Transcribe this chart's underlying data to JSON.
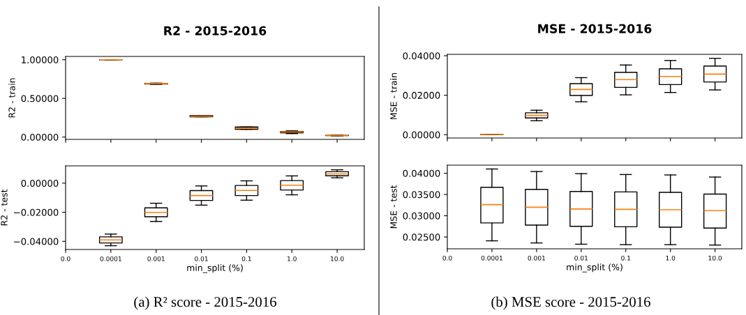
{
  "chart_data": [
    {
      "type": "box",
      "title": "R2 - 2015-2016",
      "ylabel": "R2 - train",
      "tick_labels": "y",
      "categories": [
        "0.0",
        "0.0001",
        "0.001",
        "0.01",
        "0.1",
        "1.0",
        "10.0"
      ],
      "ylim": [
        -0.03,
        1.042
      ],
      "yticks": [
        {
          "value": 0,
          "label": "0.00000"
        },
        {
          "value": 0.5,
          "label": "0.50000"
        },
        {
          "value": 1,
          "label": "1.00000"
        }
      ],
      "boxes": [
        null,
        {
          "low": 0.998,
          "q1": 0.999,
          "median": 0.999,
          "q3": 1.0,
          "high": 1.0
        },
        {
          "low": 0.68,
          "q1": 0.685,
          "median": 0.69,
          "q3": 0.693,
          "high": 0.697
        },
        {
          "low": 0.262,
          "q1": 0.262,
          "median": 0.27,
          "q3": 0.278,
          "high": 0.278
        },
        {
          "low": 0.1,
          "q1": 0.1,
          "median": 0.115,
          "q3": 0.13,
          "high": 0.13
        },
        {
          "low": 0.045,
          "q1": 0.055,
          "median": 0.065,
          "q3": 0.072,
          "high": 0.08
        },
        {
          "low": 0.015,
          "q1": 0.018,
          "median": 0.02,
          "q3": 0.022,
          "high": 0.025
        }
      ]
    },
    {
      "type": "box",
      "ylabel": "R2 - test",
      "xlabel": "min_split (%)",
      "annotations": [
        "(a) R² score - 2015-2016"
      ],
      "categories": [
        "0.0",
        "0.0001",
        "0.001",
        "0.01",
        "0.1",
        "1.0",
        "10.0"
      ],
      "ylim": [
        -0.0456,
        0.0119
      ],
      "yticks": [
        {
          "value": -0.04,
          "label": "−0.04000"
        },
        {
          "value": -0.02,
          "label": "−0.02000"
        },
        {
          "value": 0,
          "label": "0.00000"
        }
      ],
      "boxes": [
        null,
        {
          "low": -0.043,
          "q1": -0.0411,
          "median": -0.039,
          "q3": -0.0369,
          "high": -0.035
        },
        {
          "low": -0.0263,
          "q1": -0.0231,
          "median": -0.0201,
          "q3": -0.017,
          "high": -0.0138
        },
        {
          "low": -0.0151,
          "q1": -0.0119,
          "median": -0.0085,
          "q3": -0.0051,
          "high": -0.0019
        },
        {
          "low": -0.0117,
          "q1": -0.0085,
          "median": -0.005,
          "q3": -0.0016,
          "high": 0.0016
        },
        {
          "low": -0.008,
          "q1": -0.0047,
          "median": -0.0014,
          "q3": 0.0018,
          "high": 0.005
        },
        {
          "low": 0.0037,
          "q1": 0.0051,
          "median": 0.0064,
          "q3": 0.0079,
          "high": 0.0092
        }
      ]
    },
    {
      "type": "box",
      "title": "MSE - 2015-2016",
      "ylabel": "MSE - train",
      "tick_labels": "y",
      "categories": [
        "0.0",
        "0.0001",
        "0.001",
        "0.01",
        "0.1",
        "1.0",
        "10.0"
      ],
      "ylim": [
        -0.00165,
        0.0407
      ],
      "yticks": [
        {
          "value": 0,
          "label": "0.00000"
        },
        {
          "value": 0.02,
          "label": "0.02000"
        },
        {
          "value": 0.04,
          "label": "0.04000"
        }
      ],
      "boxes": [
        null,
        {
          "low": 0.0001,
          "q1": 0.0001,
          "median": 0.0001,
          "q3": 0.0001,
          "high": 0.0001
        },
        {
          "low": 0.0071,
          "q1": 0.0085,
          "median": 0.0098,
          "q3": 0.0111,
          "high": 0.0124
        },
        {
          "low": 0.0167,
          "q1": 0.0199,
          "median": 0.0229,
          "q3": 0.0259,
          "high": 0.0289
        },
        {
          "low": 0.0202,
          "q1": 0.024,
          "median": 0.0279,
          "q3": 0.0316,
          "high": 0.0353
        },
        {
          "low": 0.0214,
          "q1": 0.0254,
          "median": 0.0295,
          "q3": 0.0334,
          "high": 0.0376
        },
        {
          "low": 0.0227,
          "q1": 0.0267,
          "median": 0.0307,
          "q3": 0.0348,
          "high": 0.0387
        }
      ]
    },
    {
      "type": "box",
      "ylabel": "MSE - test",
      "xlabel": "min_split (%)",
      "annotations": [
        "(b) MSE score - 2015-2016"
      ],
      "categories": [
        "0.0",
        "0.0001",
        "0.001",
        "0.01",
        "0.1",
        "1.0",
        "10.0"
      ],
      "ylim": [
        0.02222,
        0.0419
      ],
      "yticks": [
        {
          "value": 0.025,
          "label": "0.02500"
        },
        {
          "value": 0.03,
          "label": "0.03000"
        },
        {
          "value": 0.035,
          "label": "0.03500"
        },
        {
          "value": 0.04,
          "label": "0.04000"
        }
      ],
      "boxes": [
        null,
        {
          "low": 0.0241,
          "q1": 0.0283,
          "median": 0.0326,
          "q3": 0.0367,
          "high": 0.041
        },
        {
          "low": 0.0236,
          "q1": 0.0278,
          "median": 0.032,
          "q3": 0.0362,
          "high": 0.0404
        },
        {
          "low": 0.0233,
          "q1": 0.0275,
          "median": 0.0316,
          "q3": 0.0357,
          "high": 0.0399
        },
        {
          "low": 0.0232,
          "q1": 0.0274,
          "median": 0.0315,
          "q3": 0.0356,
          "high": 0.0397
        },
        {
          "low": 0.0232,
          "q1": 0.0273,
          "median": 0.0314,
          "q3": 0.0355,
          "high": 0.0396
        },
        {
          "low": 0.0231,
          "q1": 0.0271,
          "median": 0.0312,
          "q3": 0.0351,
          "high": 0.0391
        }
      ]
    }
  ]
}
